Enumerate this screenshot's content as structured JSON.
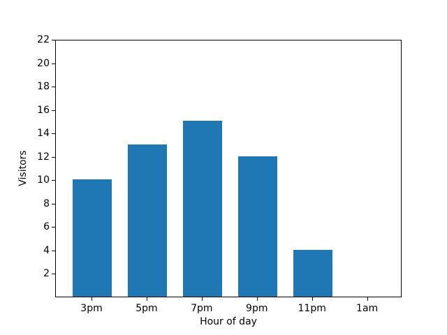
{
  "chart_data": {
    "type": "bar",
    "title": "",
    "xlabel": "Hour of day",
    "ylabel": "Visitors",
    "categories": [
      "3pm",
      "5pm",
      "7pm",
      "9pm",
      "11pm",
      "1am"
    ],
    "values": [
      10,
      13,
      15,
      12,
      4,
      0
    ],
    "yticks": [
      2,
      4,
      6,
      8,
      10,
      12,
      14,
      16,
      18,
      20,
      22
    ],
    "ylim": [
      0,
      22
    ],
    "bar_color": "#1f77b4",
    "spine_color": "#000000",
    "background_color": "#ffffff",
    "grid": false,
    "legend": "none"
  }
}
